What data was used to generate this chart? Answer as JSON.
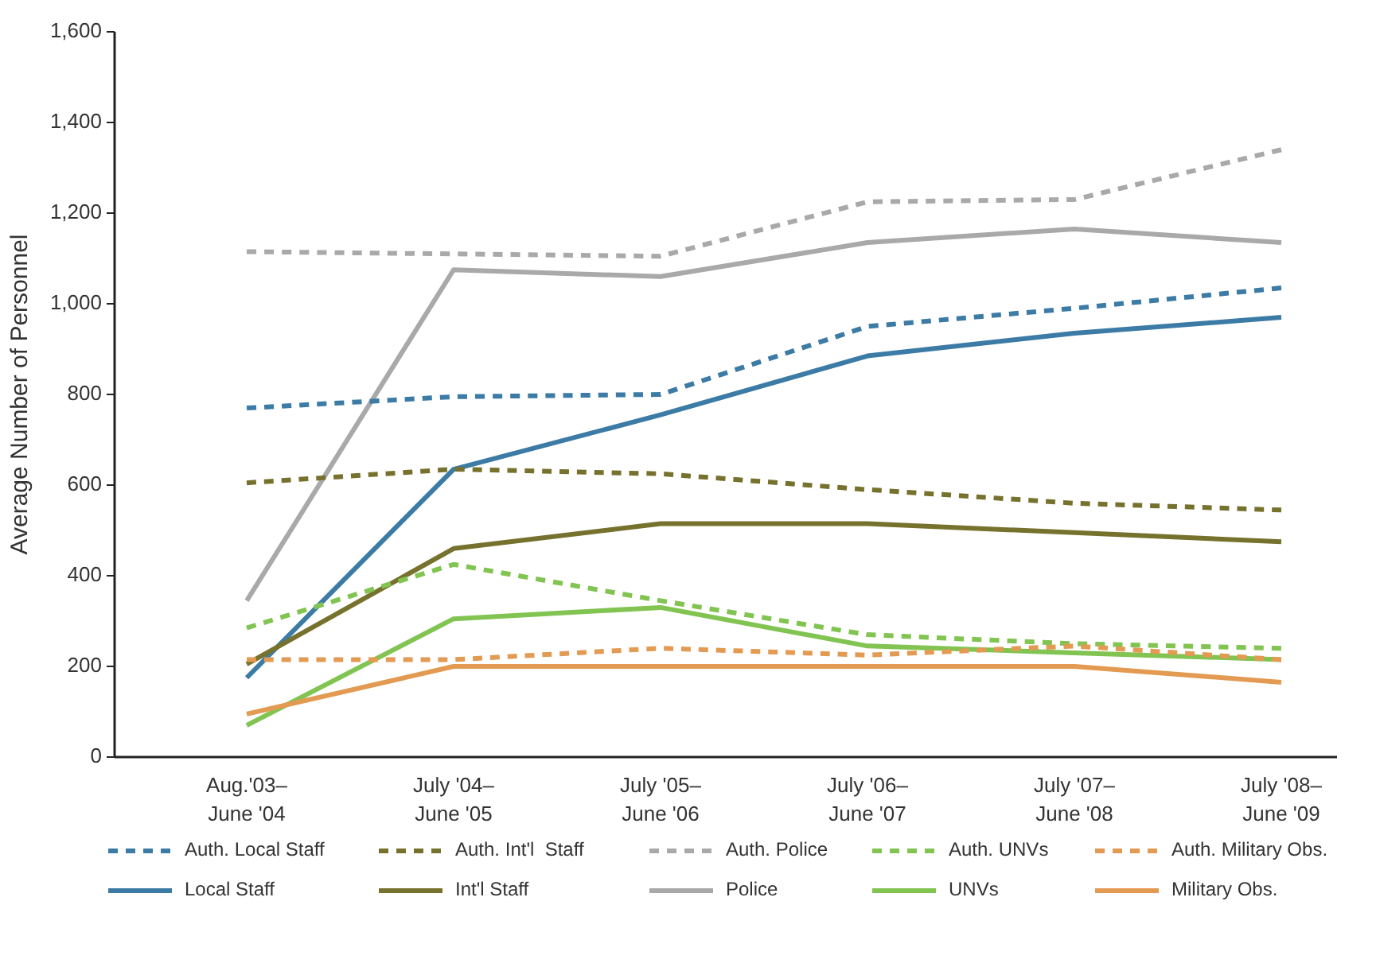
{
  "chart_data": {
    "type": "line",
    "ylabel": "Average Number of Personnel",
    "categories": [
      "Aug.'03–\nJune '04",
      "July '04–\nJune '05",
      "July '05–\nJune '06",
      "July '06–\nJune '07",
      "July '07–\nJune '08",
      "July '08–\nJune '09"
    ],
    "ylim": [
      0,
      1600
    ],
    "yticks": [
      0,
      {
        "value": 200,
        "label": "200"
      },
      {
        "value": 400,
        "label": "400"
      },
      {
        "value": 600,
        "label": "600"
      },
      {
        "value": 800,
        "label": "800"
      },
      {
        "value": 1000,
        "label": "1,000"
      },
      {
        "value": 1200,
        "label": "1,200"
      },
      {
        "value": 1400,
        "label": "1,400"
      },
      {
        "value": 1600,
        "label": "1,600"
      }
    ],
    "grid": false,
    "legend": "bottom",
    "marker": "none",
    "series": [
      {
        "name": "Auth. Local Staff",
        "color": "#3b7ba5",
        "line_style": "dashed",
        "values": [
          770,
          795,
          800,
          950,
          990,
          1035
        ]
      },
      {
        "name": "Auth. Int'l  Staff",
        "color": "#76722e",
        "line_style": "dashed",
        "values": [
          605,
          635,
          625,
          590,
          560,
          545
        ]
      },
      {
        "name": "Auth. Police",
        "color": "#a9a9a9",
        "line_style": "dashed",
        "values": [
          1115,
          1110,
          1105,
          1225,
          1230,
          1340
        ]
      },
      {
        "name": "Auth. UNVs",
        "color": "#82c451",
        "line_style": "dashed",
        "values": [
          285,
          425,
          345,
          270,
          250,
          240
        ]
      },
      {
        "name": "Auth. Military Obs.",
        "color": "#e39a52",
        "line_style": "dashed",
        "values": [
          215,
          215,
          240,
          225,
          245,
          215
        ]
      },
      {
        "name": "Local Staff",
        "color": "#3b7ba5",
        "line_style": "solid",
        "values": [
          175,
          635,
          755,
          885,
          935,
          970
        ]
      },
      {
        "name": "Int'l Staff",
        "color": "#76722e",
        "line_style": "solid",
        "values": [
          205,
          460,
          515,
          515,
          495,
          475
        ]
      },
      {
        "name": "Police",
        "color": "#a9a9a9",
        "line_style": "solid",
        "values": [
          345,
          1075,
          1060,
          1135,
          1165,
          1135
        ]
      },
      {
        "name": "UNVs",
        "color": "#82c451",
        "line_style": "solid",
        "values": [
          70,
          305,
          330,
          245,
          230,
          215
        ]
      },
      {
        "name": "Military Obs.",
        "color": "#e39a52",
        "line_style": "solid",
        "values": [
          95,
          200,
          200,
          200,
          200,
          165
        ]
      }
    ]
  }
}
